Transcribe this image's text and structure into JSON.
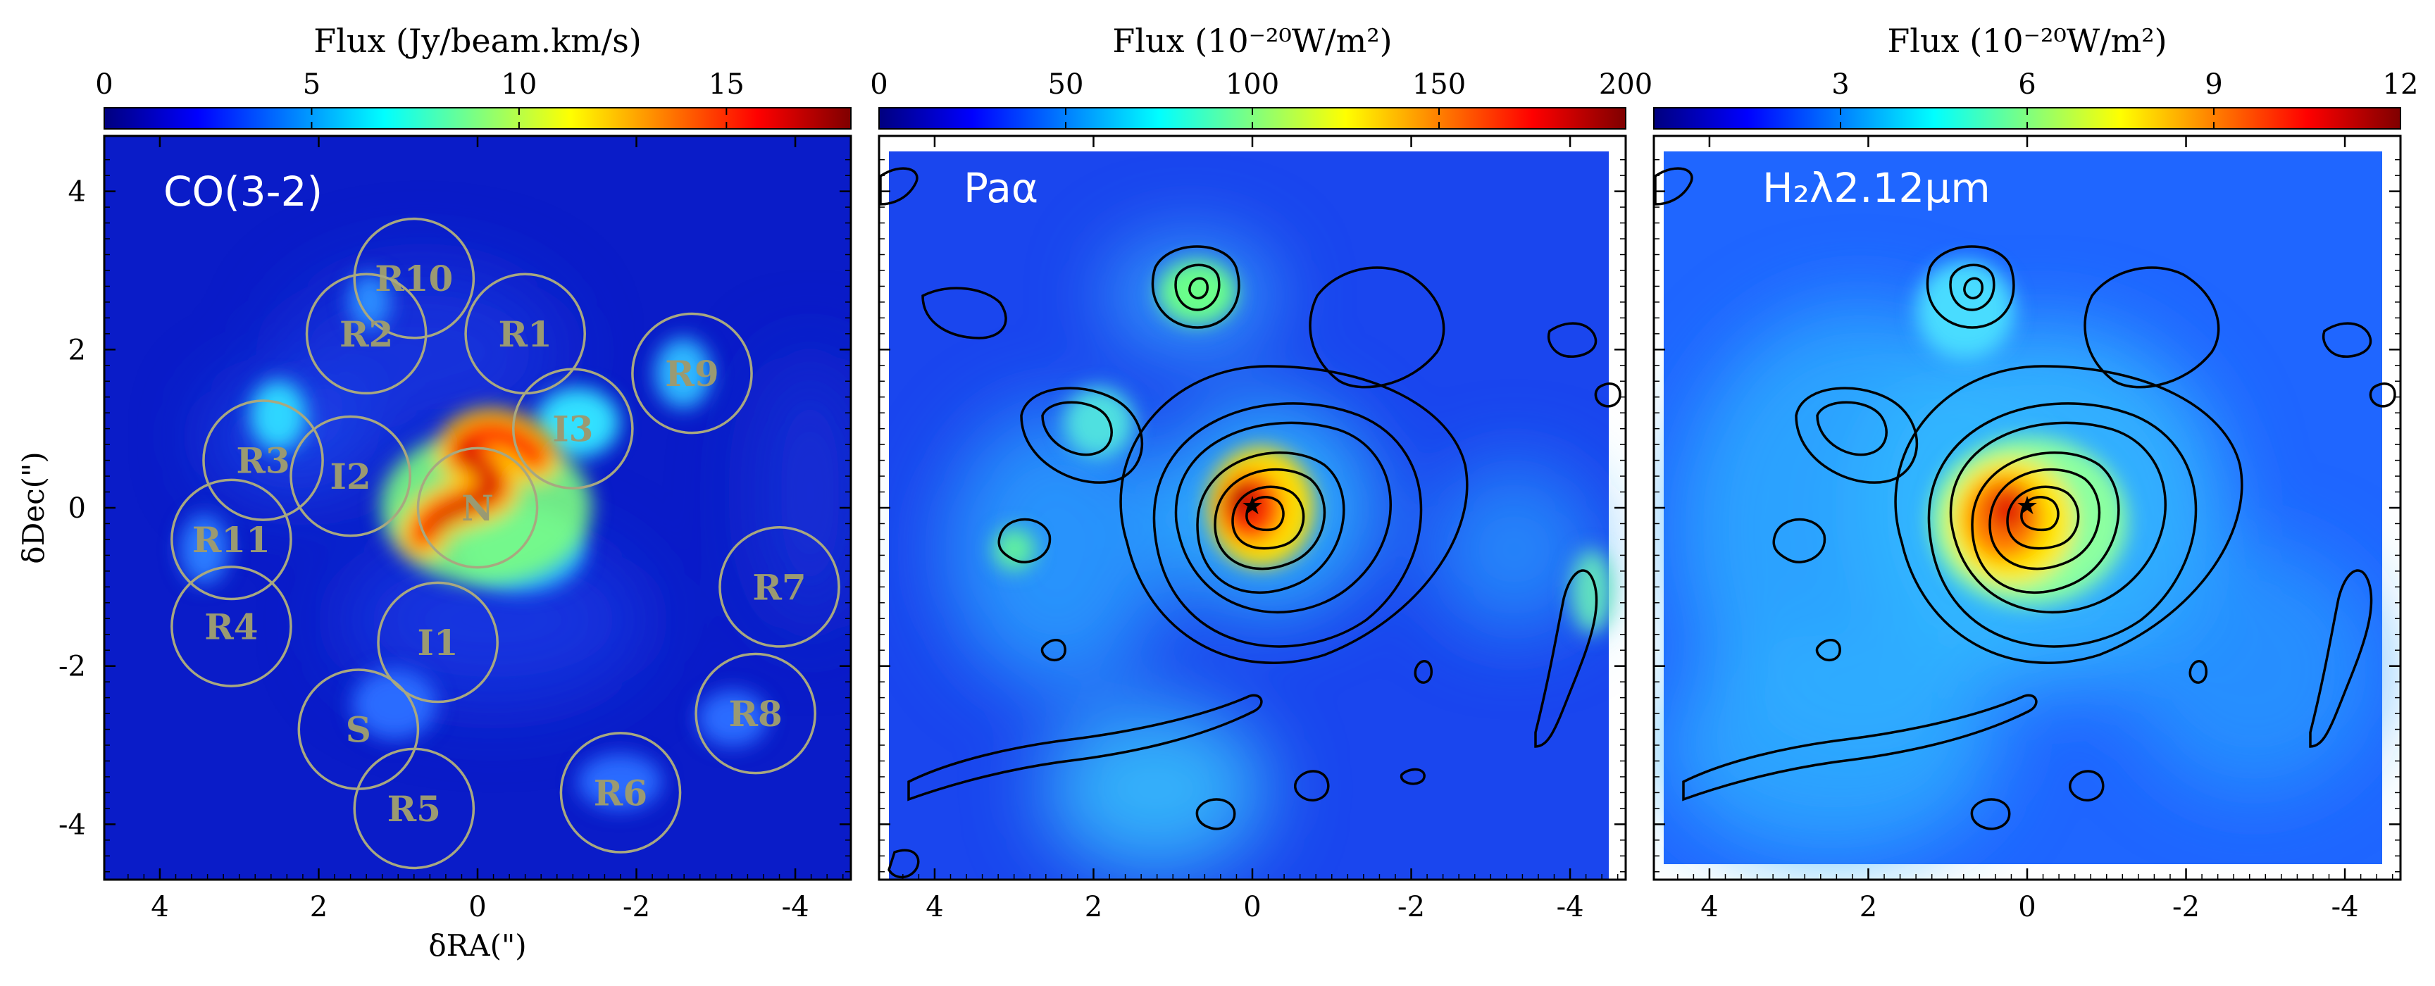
{
  "figure": {
    "y_axis_label": "δDec(\")",
    "x_axis_label": "δRA(\")"
  },
  "chart_data": [
    {
      "type": "heatmap",
      "panel_label": "CO(3-2)",
      "colorbar": {
        "title": "Flux (Jy/beam.km/s)",
        "range": [
          0,
          18
        ],
        "ticks": [
          0,
          5,
          10,
          15
        ],
        "tick_labels": [
          "0",
          "5",
          "10",
          "15"
        ]
      },
      "xlim": [
        4.7,
        -4.7
      ],
      "ylim": [
        -4.7,
        4.7
      ],
      "x_ticks": [
        4,
        2,
        0,
        -2,
        -4
      ],
      "y_ticks": [
        4,
        2,
        0,
        -2,
        -4
      ],
      "x_tick_labels": [
        "4",
        "2",
        "0",
        "-2",
        "-4"
      ],
      "y_tick_labels": [
        "4",
        "2",
        "0",
        "-2",
        "-4"
      ],
      "apertures": [
        {
          "name": "R10",
          "x": 0.8,
          "y": 2.9
        },
        {
          "name": "R2",
          "x": 1.4,
          "y": 2.2
        },
        {
          "name": "R1",
          "x": -0.6,
          "y": 2.2
        },
        {
          "name": "R9",
          "x": -2.7,
          "y": 1.7
        },
        {
          "name": "I3",
          "x": -1.2,
          "y": 1.0
        },
        {
          "name": "R3",
          "x": 2.7,
          "y": 0.6
        },
        {
          "name": "I2",
          "x": 1.6,
          "y": 0.4
        },
        {
          "name": "N",
          "x": 0.0,
          "y": 0.0
        },
        {
          "name": "R11",
          "x": 3.1,
          "y": -0.4
        },
        {
          "name": "R7",
          "x": -3.8,
          "y": -1.0
        },
        {
          "name": "R4",
          "x": 3.1,
          "y": -1.5
        },
        {
          "name": "I1",
          "x": 0.5,
          "y": -1.7
        },
        {
          "name": "S",
          "x": 1.5,
          "y": -2.8
        },
        {
          "name": "R8",
          "x": -3.5,
          "y": -2.6
        },
        {
          "name": "R6",
          "x": -1.8,
          "y": -3.6
        },
        {
          "name": "R5",
          "x": 0.8,
          "y": -3.8
        }
      ]
    },
    {
      "type": "heatmap",
      "panel_label": "Paα",
      "colorbar": {
        "title": "Flux (10⁻²⁰W/m²)",
        "range": [
          0,
          200
        ],
        "ticks": [
          0,
          50,
          100,
          150,
          200
        ],
        "tick_labels": [
          "0",
          "50",
          "100",
          "150",
          "200"
        ]
      },
      "xlim": [
        4.7,
        -4.7
      ],
      "ylim": [
        -4.7,
        4.7
      ],
      "x_ticks": [
        4,
        2,
        0,
        -2,
        -4
      ],
      "x_tick_labels": [
        "4",
        "2",
        "0",
        "-2",
        "-4"
      ],
      "contours": "CO(3-2) overlay"
    },
    {
      "type": "heatmap",
      "panel_label": "H₂λ2.12μm",
      "colorbar": {
        "title": "Flux (10⁻²⁰W/m²)",
        "range": [
          0,
          12
        ],
        "ticks": [
          3,
          6,
          9,
          12
        ],
        "tick_labels": [
          "3",
          "6",
          "9",
          "12"
        ]
      },
      "xlim": [
        4.7,
        -4.7
      ],
      "ylim": [
        -4.7,
        4.7
      ],
      "x_ticks": [
        4,
        2,
        0,
        -2,
        -4
      ],
      "x_tick_labels": [
        "4",
        "2",
        "0",
        "-2",
        "-4"
      ],
      "contours": "CO(3-2) overlay"
    }
  ],
  "colors": {
    "jet": [
      "#00007f",
      "#0000ff",
      "#007fff",
      "#00ffff",
      "#7fff7f",
      "#ffff00",
      "#ff7f00",
      "#ff0000",
      "#7f0000"
    ],
    "background": "#0a1fd8",
    "aperture": "#a8a880",
    "contour": "#000000"
  }
}
